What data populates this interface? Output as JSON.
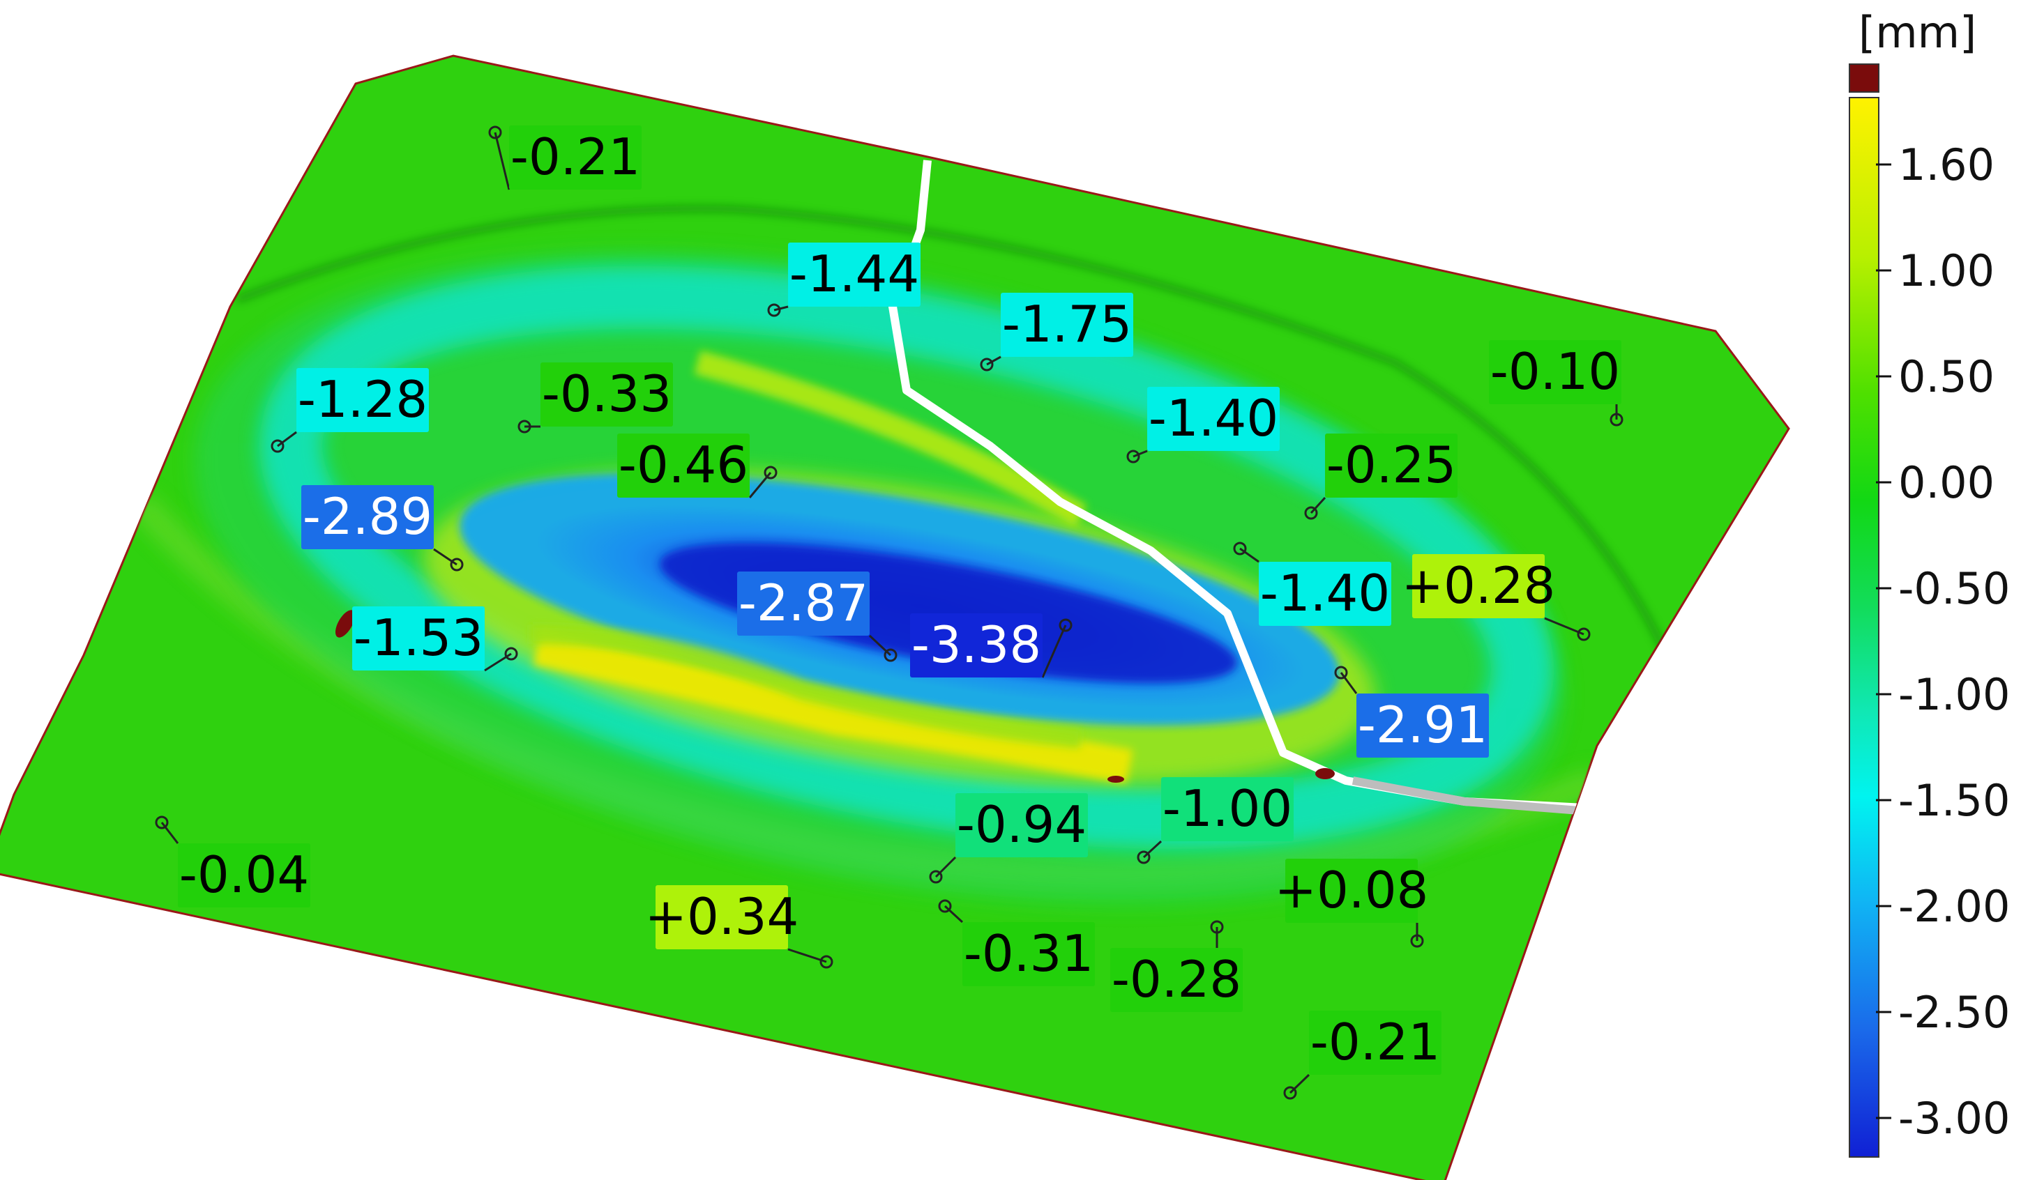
{
  "legend": {
    "unit": "[mm]",
    "over_range_color": "#7a0c0c",
    "ticks": [
      "1.60",
      "1.00",
      "0.50",
      "0.00",
      "-0.50",
      "-1.00",
      "-1.50",
      "-2.00",
      "-2.50",
      "-3.00"
    ],
    "tick_values": [
      1.6,
      1.0,
      0.5,
      0.0,
      -0.5,
      -1.0,
      -1.5,
      -2.0,
      -2.5,
      -3.0
    ],
    "colors": {
      "yellow": "#ffee00",
      "lime": "#aef20a",
      "green": "#22d00a",
      "teal_green": "#11e07a",
      "aqua": "#00f0e6",
      "light_blue": "#12b7f5",
      "blue": "#1b6ee8",
      "dark_blue": "#1126d8"
    }
  },
  "deviation_labels": [
    {
      "text": "-0.21",
      "value": -0.21
    },
    {
      "text": "-1.44",
      "value": -1.44
    },
    {
      "text": "-1.75",
      "value": -1.75
    },
    {
      "text": "-0.10",
      "value": -0.1
    },
    {
      "text": "-1.28",
      "value": -1.28
    },
    {
      "text": "-0.33",
      "value": -0.33
    },
    {
      "text": "-0.46",
      "value": -0.46
    },
    {
      "text": "-1.40",
      "value": -1.4
    },
    {
      "text": "-0.25",
      "value": -0.25
    },
    {
      "text": "-2.89",
      "value": -2.89
    },
    {
      "text": "-1.53",
      "value": -1.53
    },
    {
      "text": "-2.87",
      "value": -2.87
    },
    {
      "text": "-3.38",
      "value": -3.38
    },
    {
      "text": "-1.40",
      "value": -1.4
    },
    {
      "text": "+0.28",
      "value": 0.28
    },
    {
      "text": "-2.91",
      "value": -2.91
    },
    {
      "text": "-0.94",
      "value": -0.94
    },
    {
      "text": "-1.00",
      "value": -1.0
    },
    {
      "text": "-0.04",
      "value": -0.04
    },
    {
      "text": "+0.34",
      "value": 0.34
    },
    {
      "text": "+0.08",
      "value": 0.08
    },
    {
      "text": "-0.31",
      "value": -0.31
    },
    {
      "text": "-0.28",
      "value": -0.28
    },
    {
      "text": "-0.21",
      "value": -0.21
    }
  ]
}
